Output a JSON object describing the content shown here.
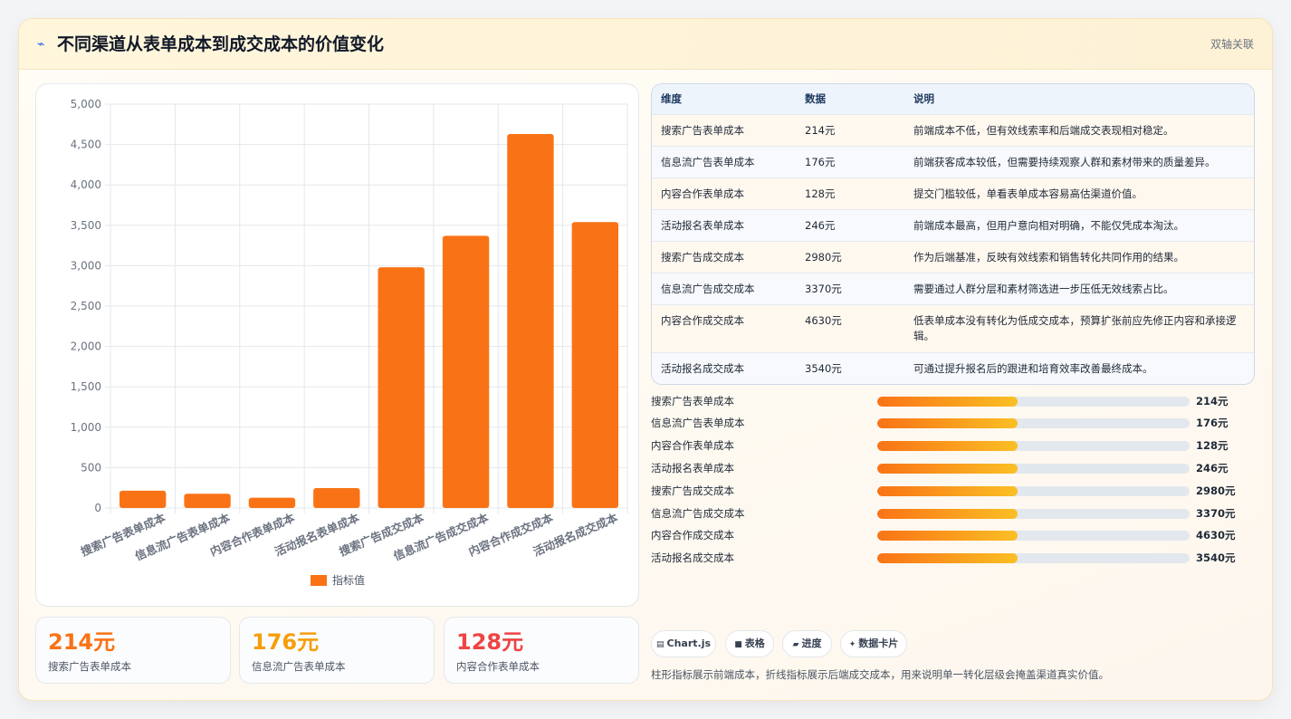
{
  "header": {
    "icon": "zigzag-icon",
    "title": "不同渠道从表单成本到成交成本的价值变化",
    "tag": "双轴关联"
  },
  "chart_data": {
    "type": "bar",
    "categories": [
      "搜索广告表单成本",
      "信息流广告表单成本",
      "内容合作表单成本",
      "活动报名表单成本",
      "搜索广告成交成本",
      "信息流广告成交成本",
      "内容合作成交成本",
      "活动报名成交成本"
    ],
    "series": [
      {
        "name": "指标值",
        "values": [
          214,
          176,
          128,
          246,
          2980,
          3370,
          4630,
          3540
        ]
      }
    ],
    "ylim": [
      0,
      5000
    ],
    "yticks": [
      0,
      500,
      1000,
      1500,
      2000,
      2500,
      3000,
      3500,
      4000,
      4500,
      5000
    ],
    "ytick_labels": [
      "0",
      "500",
      "1,000",
      "1,500",
      "2,000",
      "2,500",
      "3,000",
      "3,500",
      "4,000",
      "4,500",
      "5,000"
    ],
    "color": "#f97316",
    "grid": true,
    "legend": "bottom"
  },
  "stats": [
    {
      "value": "214元",
      "label": "搜索广告表单成本",
      "color": "#f97316"
    },
    {
      "value": "176元",
      "label": "信息流广告表单成本",
      "color": "#f59e0b"
    },
    {
      "value": "128元",
      "label": "内容合作表单成本",
      "color": "#ef4444"
    }
  ],
  "table": {
    "headers": [
      "维度",
      "数据",
      "说明"
    ],
    "rows": [
      {
        "dim": "搜索广告表单成本",
        "val": "214元",
        "desc": "前端成本不低，但有效线索率和后端成交表现相对稳定。"
      },
      {
        "dim": "信息流广告表单成本",
        "val": "176元",
        "desc": "前端获客成本较低，但需要持续观察人群和素材带来的质量差异。"
      },
      {
        "dim": "内容合作表单成本",
        "val": "128元",
        "desc": "提交门槛较低，单看表单成本容易高估渠道价值。"
      },
      {
        "dim": "活动报名表单成本",
        "val": "246元",
        "desc": "前端成本最高，但用户意向相对明确，不能仅凭成本淘汰。"
      },
      {
        "dim": "搜索广告成交成本",
        "val": "2980元",
        "desc": "作为后端基准，反映有效线索和销售转化共同作用的结果。"
      },
      {
        "dim": "信息流广告成交成本",
        "val": "3370元",
        "desc": "需要通过人群分层和素材筛选进一步压低无效线索占比。"
      },
      {
        "dim": "内容合作成交成本",
        "val": "4630元",
        "desc": "低表单成本没有转化为低成交成本，预算扩张前应先修正内容和承接逻辑。"
      },
      {
        "dim": "活动报名成交成本",
        "val": "3540元",
        "desc": "可通过提升报名后的跟进和培育效率改善最终成本。"
      }
    ]
  },
  "progress": [
    {
      "label": "搜索广告表单成本",
      "value": "214元",
      "fill": 0.45
    },
    {
      "label": "信息流广告表单成本",
      "value": "176元",
      "fill": 0.45
    },
    {
      "label": "内容合作表单成本",
      "value": "128元",
      "fill": 0.45
    },
    {
      "label": "活动报名表单成本",
      "value": "246元",
      "fill": 0.45
    },
    {
      "label": "搜索广告成交成本",
      "value": "2980元",
      "fill": 0.45
    },
    {
      "label": "信息流广告成交成本",
      "value": "3370元",
      "fill": 0.45
    },
    {
      "label": "内容合作成交成本",
      "value": "4630元",
      "fill": 0.45
    },
    {
      "label": "活动报名成交成本",
      "value": "3540元",
      "fill": 0.45
    }
  ],
  "chips": [
    {
      "icon": "chart-icon",
      "glyph": "▤",
      "label": "Chart.js"
    },
    {
      "icon": "table-icon",
      "glyph": "■",
      "label": "表格"
    },
    {
      "icon": "progress-icon",
      "glyph": "▰",
      "label": "进度"
    },
    {
      "icon": "card-icon",
      "glyph": "✦",
      "label": "数据卡片"
    }
  ],
  "note": "柱形指标展示前端成本，折线指标展示后端成交成本，用来说明单一转化层级会掩盖渠道真实价值。"
}
